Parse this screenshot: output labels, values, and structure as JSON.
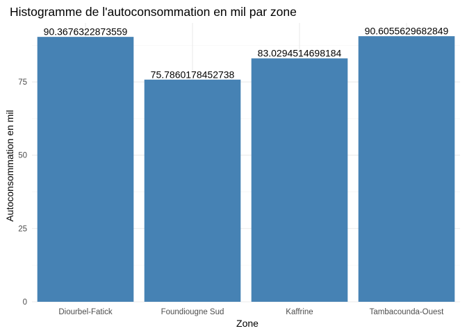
{
  "chart_data": {
    "type": "bar",
    "title": "Histogramme de l'autoconsommation en mil par zone",
    "xlabel": "Zone",
    "ylabel": "Autoconsommation en mil",
    "categories": [
      "Diourbel-Fatick",
      "Foundiougne Sud",
      "Kaffrine",
      "Tambacounda-Ouest"
    ],
    "values": [
      90.3676322873559,
      75.7860178452738,
      83.0294514698184,
      90.6055629682849
    ],
    "value_labels": [
      "90.3676322873559",
      "75.7860178452738",
      "83.0294514698184",
      "90.6055629682849"
    ],
    "yticks": [
      0,
      25,
      50,
      75
    ],
    "ylim": [
      0,
      95.14
    ],
    "grid": true,
    "legend": "none",
    "colors": {
      "bar": "#4682B4",
      "grid_major": "#EBEBEB",
      "grid_minor": "#F5F5F5",
      "tick_text": "#4D4D4D",
      "text": "#000000"
    }
  }
}
